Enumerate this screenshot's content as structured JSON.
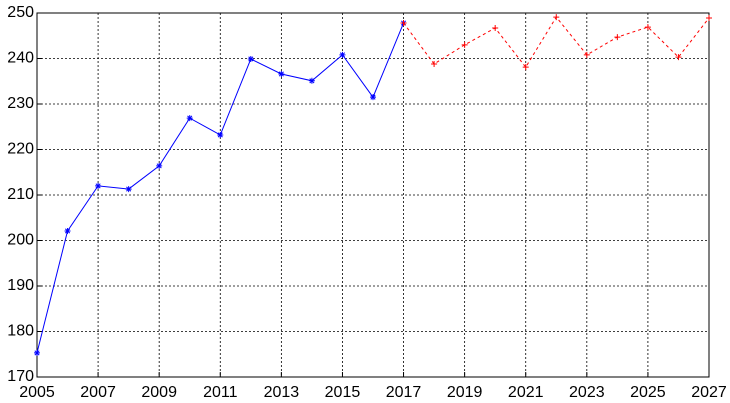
{
  "chart_data": {
    "type": "line",
    "x": [
      2005,
      2006,
      2007,
      2008,
      2009,
      2010,
      2011,
      2012,
      2013,
      2014,
      2015,
      2016,
      2017,
      2018,
      2019,
      2020,
      2021,
      2022,
      2023,
      2024,
      2025,
      2026,
      2027
    ],
    "series": [
      {
        "color": "#0000ff",
        "linestyle": "solid",
        "marker": "*",
        "values": [
          175.3,
          202.1,
          212,
          211.3,
          216.4,
          226.9,
          223.2,
          239.9,
          236.6,
          235.1,
          240.8,
          231.5,
          247.8,
          null,
          null,
          null,
          null,
          null,
          null,
          null,
          null,
          null,
          null
        ]
      },
      {
        "color": "#ff0000",
        "linestyle": "dashed",
        "marker": "+",
        "values": [
          null,
          null,
          null,
          null,
          null,
          null,
          null,
          null,
          null,
          null,
          null,
          null,
          247.8,
          238.8,
          243,
          246.7,
          238.1,
          249.1,
          240.8,
          244.7,
          246.9,
          240.3,
          248.9
        ]
      }
    ],
    "xlim": [
      2005,
      2027
    ],
    "xticks": [
      2005,
      2007,
      2009,
      2011,
      2013,
      2015,
      2017,
      2019,
      2021,
      2023,
      2025,
      2027
    ],
    "ylim": [
      170,
      250
    ],
    "yticks": [
      170,
      180,
      190,
      200,
      210,
      220,
      230,
      240,
      250
    ],
    "grid": true
  }
}
